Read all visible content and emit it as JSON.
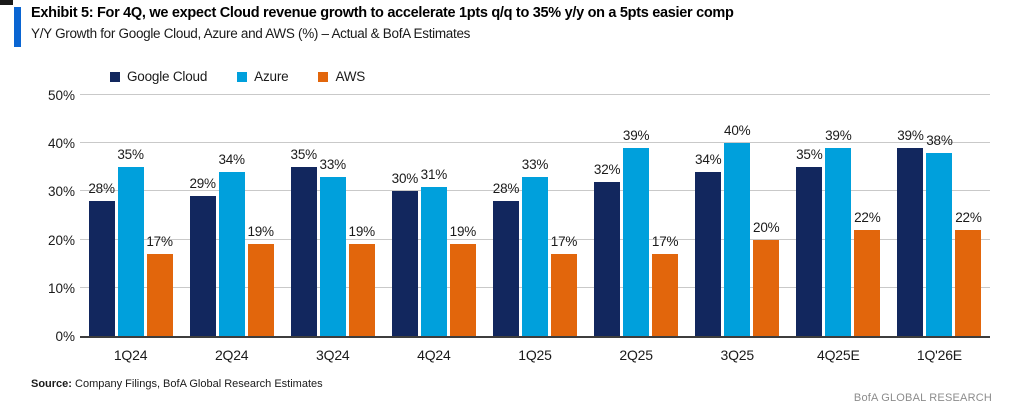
{
  "header": {
    "exhibit_title": "Exhibit 5: For 4Q, we expect Cloud revenue growth to accelerate 1pts q/q to 35% y/y on a 5pts easier comp",
    "subtitle": "Y/Y Growth for Google Cloud, Azure and AWS (%) – Actual & BofA Estimates"
  },
  "chart_data": {
    "type": "bar",
    "categories": [
      "1Q24",
      "2Q24",
      "3Q24",
      "4Q24",
      "1Q25",
      "2Q25",
      "3Q25",
      "4Q25E",
      "1Q'26E"
    ],
    "series": [
      {
        "name": "Google Cloud",
        "color": "#12275e",
        "values": [
          28,
          29,
          35,
          30,
          28,
          32,
          34,
          35,
          39
        ]
      },
      {
        "name": "Azure",
        "color": "#00a0dc",
        "values": [
          35,
          34,
          33,
          31,
          33,
          39,
          40,
          39,
          38
        ]
      },
      {
        "name": "AWS",
        "color": "#e2660c",
        "values": [
          17,
          19,
          19,
          19,
          17,
          17,
          20,
          22,
          22
        ]
      }
    ],
    "title": "Y/Y Growth for Google Cloud, Azure and AWS (%) – Actual & BofA Estimates",
    "xlabel": "",
    "ylabel": "",
    "ylim": [
      0,
      50
    ],
    "ytick_step": 10,
    "ytick_suffix": "%",
    "datalabel_suffix": "%",
    "grid": true,
    "legend_position": "top-left"
  },
  "footer": {
    "source_label": "Source:",
    "source_text": " Company Filings, BofA Global Research Estimates",
    "branding": "BofA GLOBAL RESEARCH"
  },
  "colors": {
    "accent_bar": "#0a65d2",
    "google_cloud": "#12275e",
    "azure": "#00a0dc",
    "aws": "#e2660c",
    "gridline": "#c9c9c9",
    "axis_line": "#3d3d3d",
    "branding_text": "#8c8c8c"
  }
}
